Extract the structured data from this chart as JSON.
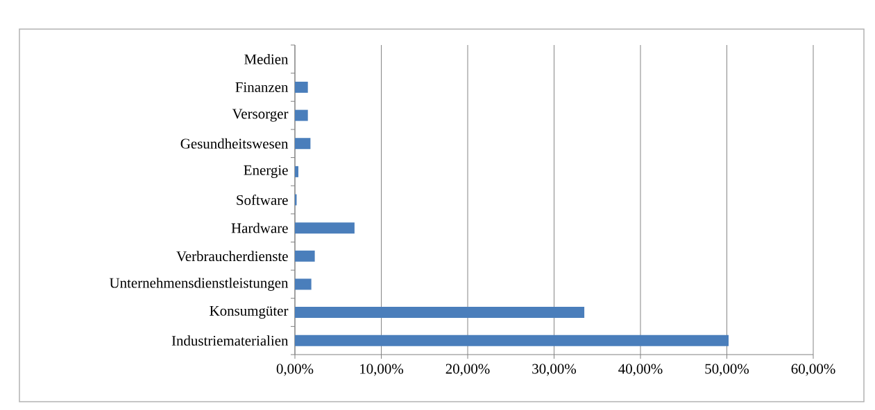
{
  "chart_data": {
    "type": "bar",
    "orientation": "horizontal",
    "categories": [
      "Medien",
      "Finanzen",
      "Versorger",
      "Gesundheitswesen",
      "Energie",
      "Software",
      "Hardware",
      "Verbraucherdienste",
      "Unternehmensdienstleistungen",
      "Konsumgüter",
      "Industriematerialien"
    ],
    "values": [
      0,
      1.5,
      1.5,
      1.8,
      0.4,
      0.2,
      6.9,
      2.3,
      1.9,
      33.5,
      50.2
    ],
    "color": "#4a7ebb",
    "xlim": [
      0,
      60
    ],
    "xticks": [
      {
        "value": 0,
        "label": "0,00%"
      },
      {
        "value": 10,
        "label": "10,00%"
      },
      {
        "value": 20,
        "label": "20,00%"
      },
      {
        "value": 30,
        "label": "30,00%"
      },
      {
        "value": 40,
        "label": "40,00%"
      },
      {
        "value": 50,
        "label": "50,00%"
      },
      {
        "value": 60,
        "label": "60,00%"
      }
    ],
    "grid": "x"
  }
}
